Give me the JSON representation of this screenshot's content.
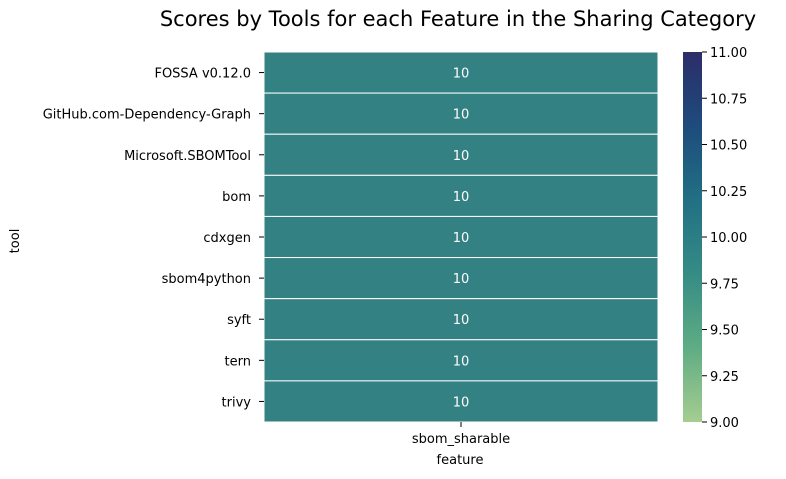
{
  "chart_data": {
    "type": "heatmap",
    "title": "Scores by Tools for each Feature in the Sharing Category",
    "xlabel": "feature",
    "ylabel": "tool",
    "columns": [
      "sbom_sharable"
    ],
    "rows": [
      "FOSSA v0.12.0",
      "GitHub.com-Dependency-Graph",
      "Microsoft.SBOMTool",
      "bom",
      "cdxgen",
      "sbom4python",
      "syft",
      "tern",
      "trivy"
    ],
    "values": [
      [
        10
      ],
      [
        10
      ],
      [
        10
      ],
      [
        10
      ],
      [
        10
      ],
      [
        10
      ],
      [
        10
      ],
      [
        10
      ],
      [
        10
      ]
    ],
    "cell_labels": [
      "10",
      "10",
      "10",
      "10",
      "10",
      "10",
      "10",
      "10",
      "10"
    ],
    "colorbar": {
      "min": 9.0,
      "max": 11.0,
      "ticks": [
        "9.00",
        "9.25",
        "9.50",
        "9.75",
        "10.00",
        "10.25",
        "10.50",
        "10.75",
        "11.00"
      ],
      "colormap": "crest",
      "colors": [
        "#a5cd90",
        "#5fac84",
        "#358c85",
        "#217084",
        "#1e4b7d",
        "#2c2d6a"
      ]
    },
    "cell_color": "#348184",
    "annotation_color": "#ffffff",
    "grid_line_color": "#ffffff"
  }
}
